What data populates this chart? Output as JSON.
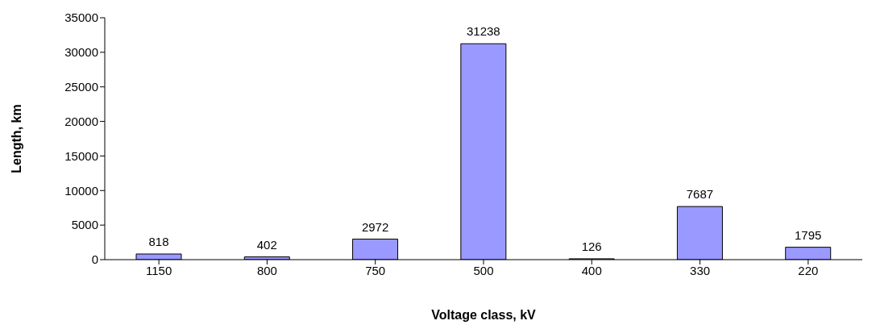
{
  "chart_data": {
    "type": "bar",
    "xlabel": "Voltage class, kV",
    "ylabel": "Length, km",
    "categories": [
      "1150",
      "800",
      "750",
      "500",
      "400",
      "330",
      "220"
    ],
    "values": [
      818,
      402,
      2972,
      31238,
      126,
      7687,
      1795
    ],
    "color": "#9999ff",
    "ylim": [
      0,
      35000
    ],
    "yticks": [
      0,
      5000,
      10000,
      15000,
      20000,
      25000,
      30000,
      35000
    ],
    "grid": false,
    "data_labels": true,
    "legend": false
  }
}
